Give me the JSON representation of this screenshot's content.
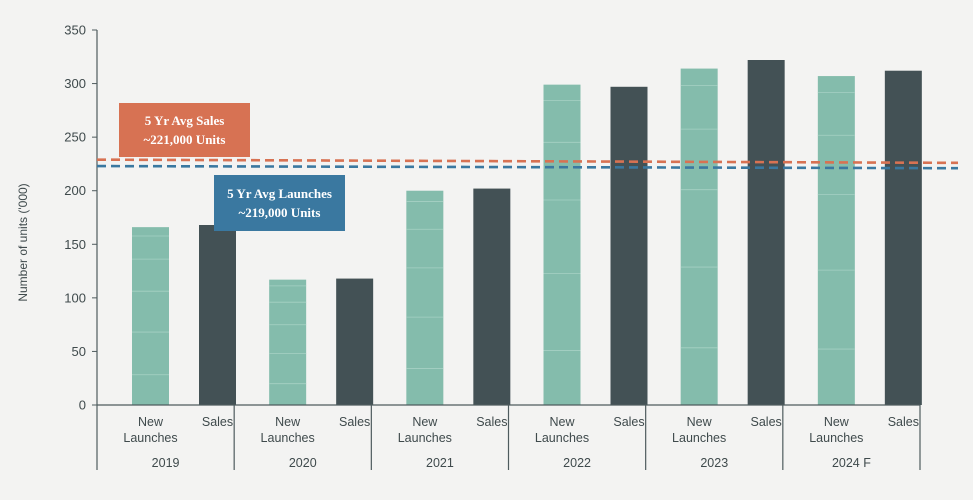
{
  "chart_data": {
    "type": "bar",
    "ylabel": "Number of units ('000)",
    "ylim": [
      0,
      350
    ],
    "yticks": [
      0,
      50,
      100,
      150,
      200,
      250,
      300,
      350
    ],
    "groups": [
      "2019",
      "2020",
      "2021",
      "2022",
      "2023",
      "2024 F"
    ],
    "bar_labels": [
      "New\nLaunches",
      "Sales"
    ],
    "series": [
      {
        "name": "New Launches",
        "color": "#84bcac",
        "values": [
          166,
          117,
          200,
          299,
          314,
          307
        ]
      },
      {
        "name": "Sales",
        "color": "#435155",
        "values": [
          168,
          118,
          202,
          297,
          322,
          312
        ]
      }
    ],
    "reference_lines": [
      {
        "name": "5 Yr Avg Sales",
        "value_label": "~221,000 Units",
        "y_start": 229,
        "y_end": 226,
        "color": "#d77253"
      },
      {
        "name": "5 Yr Avg Launches",
        "value_label": "~219,000 Units",
        "y_start": 223,
        "y_end": 221,
        "color": "#3a78a0"
      }
    ],
    "grid": false,
    "legend": "none"
  }
}
